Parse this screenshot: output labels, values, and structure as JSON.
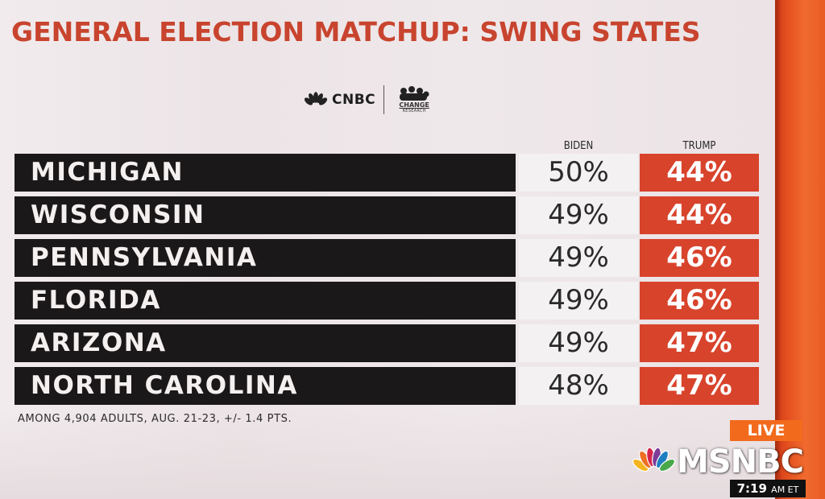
{
  "title": "GENERAL ELECTION MATCHUP: SWING STATES",
  "logos": {
    "cnbc": "CNBC",
    "partner_line1": "CHANGE",
    "partner_line2": "RESEARCH"
  },
  "footnote": "AMONG 4,904 ADULTS, AUG. 21-23, +/- 1.4 PTS.",
  "broadcast": {
    "live": "LIVE",
    "network": "MSNBC",
    "time": "7:19",
    "ampm": "AM ET"
  },
  "colors": {
    "title": "#c8442e",
    "state_bar": "#1b1819",
    "biden_cell": "#f3f1f2",
    "trump_cell": "#d8432c",
    "bezel": "#e4501f"
  },
  "chart_data": {
    "type": "table",
    "title": "GENERAL ELECTION MATCHUP: SWING STATES",
    "columns": [
      "BIDEN",
      "TRUMP"
    ],
    "rows": [
      {
        "state": "MICHIGAN",
        "biden": "50%",
        "trump": "44%"
      },
      {
        "state": "WISCONSIN",
        "biden": "49%",
        "trump": "44%"
      },
      {
        "state": "PENNSYLVANIA",
        "biden": "49%",
        "trump": "46%"
      },
      {
        "state": "FLORIDA",
        "biden": "49%",
        "trump": "46%"
      },
      {
        "state": "ARIZONA",
        "biden": "49%",
        "trump": "47%"
      },
      {
        "state": "NORTH CAROLINA",
        "biden": "48%",
        "trump": "47%"
      }
    ]
  }
}
